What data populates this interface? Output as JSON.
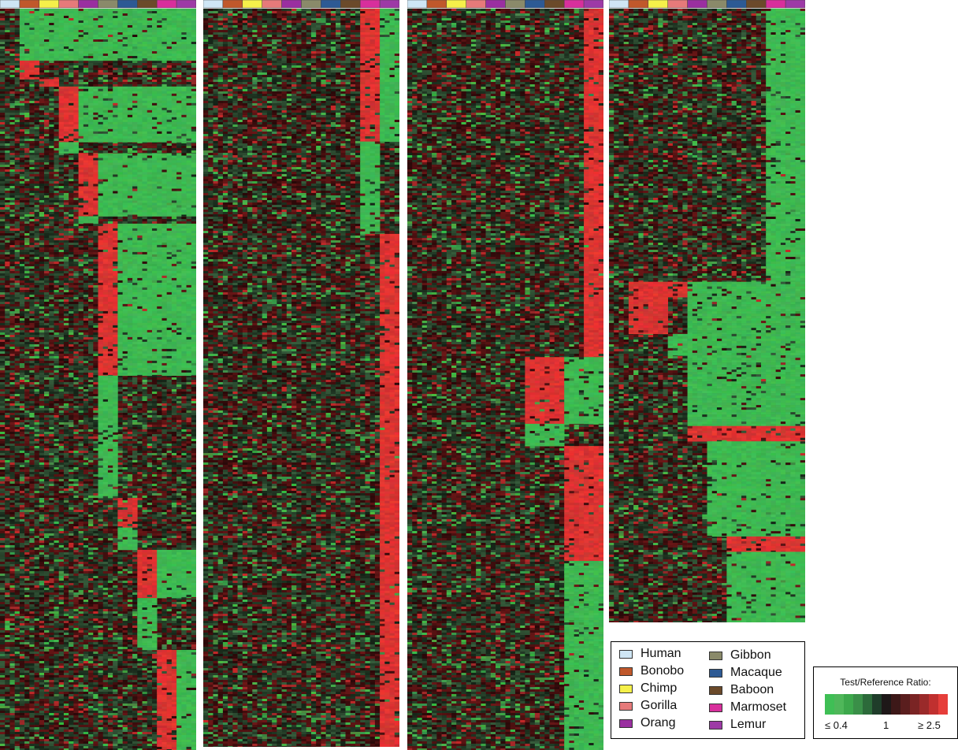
{
  "chart_data": {
    "type": "heatmap",
    "species": [
      "Human",
      "Bonobo",
      "Chimp",
      "Gorilla",
      "Orang",
      "Gibbon",
      "Macaque",
      "Baboon",
      "Marmoset",
      "Lemur"
    ],
    "species_colors": [
      "#cfe6f5",
      "#c0582b",
      "#f5f04a",
      "#e67a7a",
      "#9a2fa0",
      "#8a8a6a",
      "#2d5a94",
      "#6b4a2a",
      "#d82f9c",
      "#9d3aa6"
    ],
    "panels": [
      {
        "id": "panel-1",
        "clusters": [
          {
            "rows": [
              0,
              0.07
            ],
            "up": [],
            "down": [
              1,
              2,
              3,
              4,
              5,
              6,
              7,
              8,
              9
            ]
          },
          {
            "rows": [
              0.07,
              0.095
            ],
            "up": [
              1
            ],
            "down": []
          },
          {
            "rows": [
              0.095,
              0.105
            ],
            "up": [
              2
            ],
            "down": []
          },
          {
            "rows": [
              0.105,
              0.18
            ],
            "up": [
              3
            ],
            "down": [
              4,
              5,
              6,
              7,
              8,
              9
            ]
          },
          {
            "rows": [
              0.18,
              0.195
            ],
            "up": [],
            "down": [
              3
            ]
          },
          {
            "rows": [
              0.195,
              0.28
            ],
            "up": [
              4
            ],
            "down": [
              5,
              6,
              7,
              8,
              9
            ]
          },
          {
            "rows": [
              0.28,
              0.29
            ],
            "up": [],
            "down": [
              4
            ]
          },
          {
            "rows": [
              0.29,
              0.495
            ],
            "up": [
              5
            ],
            "down": [
              6,
              7,
              8,
              9
            ]
          },
          {
            "rows": [
              0.495,
              0.66
            ],
            "up": [],
            "down": [
              5
            ]
          },
          {
            "rows": [
              0.66,
              0.7
            ],
            "up": [
              6
            ],
            "down": []
          },
          {
            "rows": [
              0.7,
              0.73
            ],
            "up": [],
            "down": [
              6
            ]
          },
          {
            "rows": [
              0.73,
              0.795
            ],
            "up": [
              7
            ],
            "down": [
              8,
              9
            ]
          },
          {
            "rows": [
              0.795,
              0.865
            ],
            "up": [],
            "down": [
              7
            ]
          },
          {
            "rows": [
              0.865,
              1.0
            ],
            "up": [
              8
            ],
            "down": [
              9
            ]
          }
        ]
      },
      {
        "id": "panel-2",
        "clusters": [
          {
            "rows": [
              0,
              0.18
            ],
            "up": [
              8
            ],
            "down": [
              9
            ]
          },
          {
            "rows": [
              0.18,
              0.305
            ],
            "up": [],
            "down": [
              8
            ]
          },
          {
            "rows": [
              0.305,
              1.0
            ],
            "up": [
              9
            ],
            "down": []
          }
        ]
      },
      {
        "id": "panel-3",
        "clusters": [
          {
            "rows": [
              0,
              0.47
            ],
            "up": [
              9
            ],
            "down": []
          },
          {
            "rows": [
              0.47,
              0.56
            ],
            "up": [
              6,
              7
            ],
            "down": [
              8,
              9
            ]
          },
          {
            "rows": [
              0.56,
              0.59
            ],
            "up": [],
            "down": [
              6,
              7
            ]
          },
          {
            "rows": [
              0.59,
              0.745
            ],
            "up": [
              8,
              9
            ],
            "down": []
          },
          {
            "rows": [
              0.745,
              1.0
            ],
            "up": [],
            "down": [
              8,
              9
            ]
          }
        ]
      },
      {
        "id": "panel-4",
        "clusters": [
          {
            "rows": [
              0,
              0.445
            ],
            "up": [],
            "down": [
              8,
              9
            ]
          },
          {
            "rows": [
              0.445,
              0.47
            ],
            "up": [
              1,
              2,
              3
            ],
            "down": [
              4,
              5,
              6,
              7,
              8,
              9
            ]
          },
          {
            "rows": [
              0.47,
              0.53
            ],
            "up": [
              1,
              2
            ],
            "down": [
              4,
              5,
              6,
              7,
              8,
              9
            ]
          },
          {
            "rows": [
              0.53,
              0.565
            ],
            "up": [],
            "down": [
              3,
              4,
              5,
              6,
              7,
              8,
              9
            ]
          },
          {
            "rows": [
              0.565,
              0.68
            ],
            "up": [],
            "down": [
              4,
              5,
              6,
              7,
              8,
              9
            ]
          },
          {
            "rows": [
              0.68,
              0.705
            ],
            "up": [
              4,
              5,
              6,
              7,
              8,
              9
            ],
            "down": []
          },
          {
            "rows": [
              0.705,
              0.86
            ],
            "up": [],
            "down": [
              5,
              6,
              7,
              8,
              9
            ]
          },
          {
            "rows": [
              0.86,
              0.885
            ],
            "up": [
              6,
              7,
              8,
              9
            ],
            "down": []
          },
          {
            "rows": [
              0.885,
              1.0
            ],
            "up": [],
            "down": [
              6,
              7,
              8,
              9
            ]
          }
        ]
      }
    ],
    "color_scale": {
      "title": "Test/Reference Ratio:",
      "low_label": "≤ 0.4",
      "mid_label": "1",
      "high_label": "≥ 2.5",
      "colors": [
        "#3fbf55",
        "#4fb75a",
        "#3da84c",
        "#3a8f48",
        "#2c6a3a",
        "#1f3d2a",
        "#1e1818",
        "#3d1818",
        "#5a1e1e",
        "#7a2424",
        "#9a2a2a",
        "#c0302f",
        "#e63e3a"
      ]
    }
  },
  "legend": {
    "items": [
      {
        "label": "Human",
        "color": "#cfe6f5"
      },
      {
        "label": "Bonobo",
        "color": "#c0582b"
      },
      {
        "label": "Chimp",
        "color": "#f5f04a"
      },
      {
        "label": "Gorilla",
        "color": "#e67a7a"
      },
      {
        "label": "Orang",
        "color": "#9a2fa0"
      },
      {
        "label": "Gibbon",
        "color": "#8a8a6a"
      },
      {
        "label": "Macaque",
        "color": "#2d5a94"
      },
      {
        "label": "Baboon",
        "color": "#6b4a2a"
      },
      {
        "label": "Marmoset",
        "color": "#d82f9c"
      },
      {
        "label": "Lemur",
        "color": "#9d3aa6"
      }
    ]
  }
}
